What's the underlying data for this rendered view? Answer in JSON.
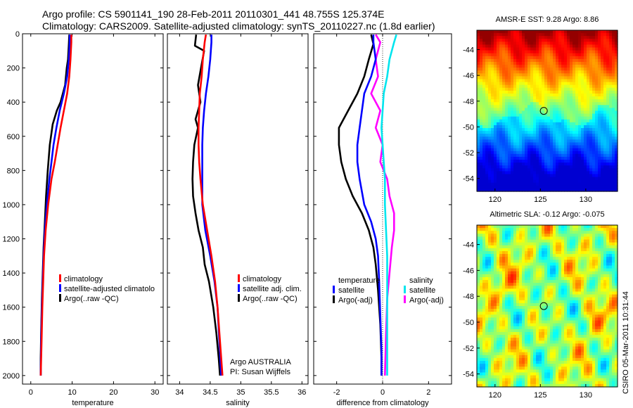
{
  "header": {
    "title_line1": "Argo profile: CS 5901141_190 28-Feb-2011 20110301_441 48.755S 125.374E",
    "title_line2": "Climatology: CARS2009. Satellite-adjusted climatology: synTS_20110227.nc (1.8d earlier)"
  },
  "colors": {
    "climatology": "#ff0000",
    "satellite": "#0000ff",
    "argo": "#000000",
    "sal_satellite": "#00e5ee",
    "sal_argo": "#ff00ff"
  },
  "chart_data": [
    {
      "type": "line",
      "id": "temperature",
      "xlabel": "temperature",
      "ylabel": "",
      "xlim": [
        -2,
        32
      ],
      "ylim": [
        2050,
        0
      ],
      "y_reversed": true,
      "xticks": [
        0,
        10,
        20,
        30
      ],
      "yticks": [
        0,
        200,
        400,
        600,
        800,
        1000,
        1200,
        1400,
        1600,
        1800,
        2000
      ],
      "legend": {
        "position": "lower-middle",
        "entries": [
          "climatology",
          "satellite-adjusted climatolo",
          "Argo(..raw -QC)"
        ]
      },
      "series": [
        {
          "name": "climatology",
          "color": "#ff0000",
          "x": [
            9.8,
            9.8,
            9.6,
            9.3,
            8.8,
            8.0,
            7.2,
            6.5,
            5.8,
            5.0,
            4.2,
            3.6,
            3.2,
            3.0,
            2.8,
            2.6,
            2.4
          ],
          "y": [
            5,
            50,
            150,
            250,
            350,
            450,
            550,
            650,
            750,
            850,
            1000,
            1150,
            1300,
            1450,
            1600,
            1800,
            2000
          ]
        },
        {
          "name": "satellite-adjusted climatology",
          "color": "#0000ff",
          "x": [
            9.4,
            9.4,
            9.2,
            8.8,
            8.0,
            7.0,
            6.2,
            5.5,
            5.0,
            4.5,
            3.9,
            3.4,
            3.1,
            2.9,
            2.7,
            2.5,
            2.4
          ],
          "y": [
            5,
            50,
            150,
            250,
            350,
            450,
            550,
            650,
            750,
            850,
            1000,
            1150,
            1300,
            1450,
            1600,
            1800,
            2000
          ]
        },
        {
          "name": "Argo(..raw -QC)",
          "color": "#000000",
          "x": [
            9.3,
            9.2,
            9.0,
            8.7,
            8.3,
            7.2,
            6.3,
            5.3,
            4.6,
            4.1,
            3.7,
            3.4,
            3.1,
            2.9,
            2.7,
            2.5,
            2.4,
            2.4
          ],
          "y": [
            5,
            60,
            150,
            200,
            300,
            400,
            450,
            530,
            650,
            800,
            950,
            1100,
            1250,
            1400,
            1550,
            1750,
            1900,
            2000
          ]
        }
      ]
    },
    {
      "type": "line",
      "id": "salinity",
      "xlabel": "salinity",
      "ylabel": "",
      "xlim": [
        33.8,
        36.1
      ],
      "ylim": [
        2050,
        0
      ],
      "y_reversed": true,
      "xticks": [
        34,
        34.5,
        35,
        35.5,
        36
      ],
      "yticks": [
        0,
        200,
        400,
        600,
        800,
        1000,
        1200,
        1400,
        1600,
        1800,
        2000
      ],
      "legend": {
        "position": "lower-right",
        "entries": [
          "climatology",
          "satellite adj. clim.",
          "Argo(..raw -QC)"
        ]
      },
      "annotation": [
        "Argo AUSTRALIA",
        "PI: Susan Wijffels"
      ],
      "series": [
        {
          "name": "climatology",
          "color": "#ff0000",
          "x": [
            34.43,
            34.41,
            34.38,
            34.36,
            34.33,
            34.32,
            34.31,
            34.31,
            34.32,
            34.34,
            34.38,
            34.45,
            34.52,
            34.58,
            34.62,
            34.66,
            34.7
          ],
          "y": [
            5,
            50,
            150,
            250,
            350,
            450,
            550,
            650,
            750,
            850,
            1000,
            1150,
            1300,
            1450,
            1600,
            1800,
            2000
          ]
        },
        {
          "name": "satellite adj. clim.",
          "color": "#0000ff",
          "x": [
            34.52,
            34.52,
            34.5,
            34.47,
            34.43,
            34.4,
            34.38,
            34.37,
            34.37,
            34.37,
            34.37,
            34.42,
            34.5,
            34.57,
            34.62,
            34.65,
            34.68
          ],
          "y": [
            5,
            50,
            150,
            250,
            350,
            450,
            550,
            650,
            750,
            850,
            1000,
            1150,
            1300,
            1450,
            1600,
            1800,
            2000
          ]
        },
        {
          "name": "Argo(..raw -QC)",
          "color": "#000000",
          "x": [
            34.27,
            34.25,
            34.4,
            34.35,
            34.3,
            34.34,
            34.26,
            34.3,
            34.24,
            34.22,
            34.21,
            34.22,
            34.26,
            34.31,
            34.38,
            34.41,
            34.48,
            34.55,
            34.6,
            34.64,
            34.66
          ],
          "y": [
            5,
            70,
            100,
            200,
            300,
            400,
            500,
            550,
            650,
            750,
            850,
            950,
            1050,
            1150,
            1250,
            1350,
            1450,
            1600,
            1750,
            1900,
            2000
          ]
        }
      ]
    },
    {
      "type": "line",
      "id": "difference",
      "xlabel": "difference from climatology",
      "ylabel": "",
      "xlim": [
        -3,
        3.0
      ],
      "ylim": [
        2050,
        0
      ],
      "y_reversed": true,
      "xticks": [
        -2,
        0,
        2
      ],
      "yticks": [
        0,
        200,
        400,
        600,
        800,
        1000,
        1200,
        1400,
        1600,
        1800,
        2000
      ],
      "legend": {
        "position": "lower",
        "entries": [
          "temperature",
          "satellite",
          "Argo(-adj)",
          "salinity",
          "satellite",
          "Argo(-adj)"
        ]
      },
      "series": [
        {
          "name": "temperature satellite",
          "color": "#0000ff",
          "x": [
            -0.4,
            -0.4,
            -0.3,
            -0.5,
            -0.8,
            -0.9,
            -1.0,
            -1.1,
            -1.1,
            -1.0,
            -0.8,
            -0.5,
            -0.3,
            -0.2,
            -0.15,
            -0.1,
            -0.05,
            -0.05
          ],
          "y": [
            5,
            50,
            150,
            250,
            350,
            450,
            550,
            650,
            750,
            850,
            1000,
            1100,
            1200,
            1300,
            1450,
            1650,
            1850,
            2000
          ]
        },
        {
          "name": "temperature Argo(-adj)",
          "color": "#000000",
          "x": [
            -0.5,
            -0.4,
            -0.6,
            -0.8,
            -1.1,
            -1.5,
            -1.9,
            -1.9,
            -1.8,
            -1.6,
            -1.3,
            -0.9,
            -0.6,
            -0.4,
            -0.3,
            -0.2,
            -0.1,
            -0.05,
            -0.05
          ],
          "y": [
            5,
            60,
            150,
            250,
            350,
            450,
            550,
            650,
            750,
            850,
            950,
            1050,
            1150,
            1250,
            1350,
            1500,
            1700,
            1900,
            2000
          ]
        },
        {
          "name": "salinity satellite",
          "color": "#00e5ee",
          "x": [
            0.6,
            0.5,
            0.3,
            0.2,
            0.05,
            0.0,
            -0.05,
            0.0,
            0.05,
            0.1,
            0.1,
            0.15,
            0.2,
            0.2,
            0.2,
            0.2,
            0.2
          ],
          "y": [
            5,
            50,
            150,
            250,
            350,
            450,
            550,
            650,
            750,
            850,
            1000,
            1150,
            1300,
            1450,
            1600,
            1800,
            2000
          ]
        },
        {
          "name": "salinity Argo(-adj)",
          "color": "#ff00ff",
          "x": [
            -0.3,
            -0.1,
            -0.3,
            -0.2,
            -0.5,
            -0.1,
            -0.3,
            0.0,
            -0.1,
            0.2,
            0.3,
            0.5,
            0.5,
            0.4,
            0.3,
            0.2,
            0.15,
            0.1
          ],
          "y": [
            5,
            50,
            150,
            250,
            350,
            450,
            550,
            650,
            750,
            850,
            950,
            1050,
            1150,
            1250,
            1400,
            1550,
            1750,
            2000
          ]
        }
      ]
    },
    {
      "type": "heatmap",
      "id": "sst_map",
      "title": "AMSR-E SST: 9.28 Argo: 8.86",
      "xlim": [
        118,
        133.5
      ],
      "ylim": [
        -55,
        -42.5
      ],
      "xticks": [
        120,
        125,
        130
      ],
      "yticks": [
        -44,
        -46,
        -48,
        -50,
        -52,
        -54
      ],
      "marker": {
        "lon": 125.374,
        "lat": -48.755
      }
    },
    {
      "type": "heatmap",
      "id": "sla_map",
      "title": "Altimetric SLA: -0.12 Argo: -0.075",
      "xlim": [
        118,
        133.5
      ],
      "ylim": [
        -55,
        -42.5
      ],
      "xticks": [
        120,
        125,
        130
      ],
      "yticks": [
        -44,
        -46,
        -48,
        -50,
        -52,
        -54
      ],
      "marker": {
        "lon": 125.374,
        "lat": -48.755
      }
    }
  ],
  "footer": {
    "credit": "CSIRO 05-Mar-2011 10:31:44"
  }
}
